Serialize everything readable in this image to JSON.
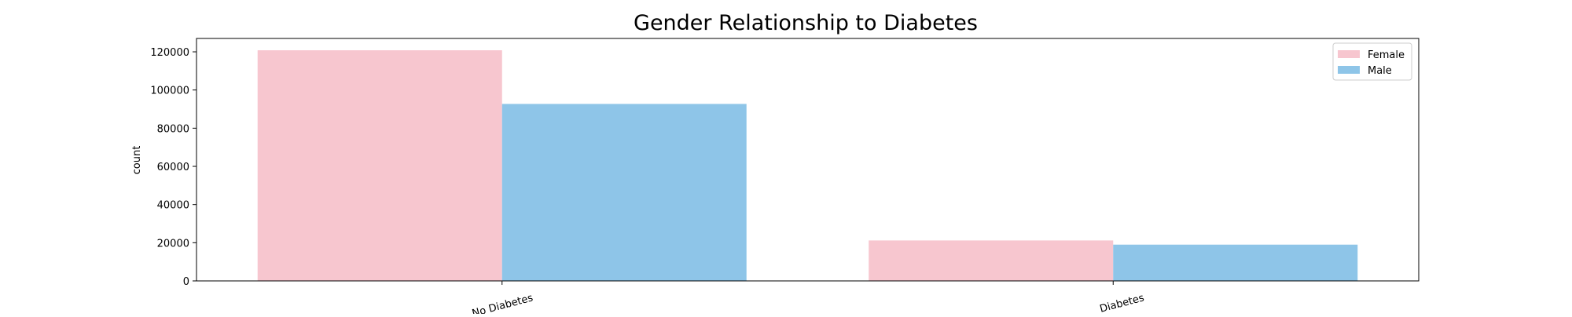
{
  "chart_data": {
    "type": "bar",
    "title": "Gender Relationship to Diabetes",
    "xlabel": "",
    "ylabel": "count",
    "categories": [
      "No Diabetes",
      "Diabetes"
    ],
    "series": [
      {
        "name": "Female",
        "color": "#f7c6cf",
        "values": [
          120800,
          21200
        ]
      },
      {
        "name": "Male",
        "color": "#8ec5e8",
        "values": [
          92700,
          19000
        ]
      }
    ],
    "ylim": [
      0,
      127000
    ],
    "yticks": [
      0,
      20000,
      40000,
      60000,
      80000,
      100000,
      120000
    ],
    "grid": false,
    "legend": "top-right"
  }
}
